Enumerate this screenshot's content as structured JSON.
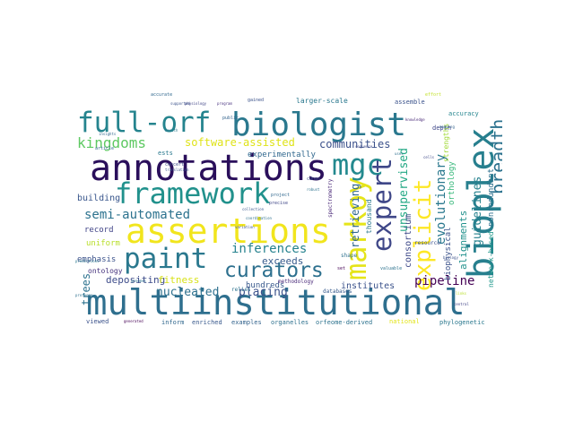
{
  "words": [
    {
      "text": "multiinstitutional",
      "color": "#2e6f8e"
    },
    {
      "text": "annotations",
      "color": "#2a0f5b"
    },
    {
      "text": "assertions",
      "color": "#f1e51d"
    },
    {
      "text": "biologist",
      "color": "#2a788e"
    },
    {
      "text": "bioplex",
      "color": "#277f8e"
    },
    {
      "text": "framework",
      "color": "#21918c"
    },
    {
      "text": "paint",
      "color": "#2a788e"
    },
    {
      "text": "full-orf",
      "color": "#25848e"
    },
    {
      "text": "markoy",
      "color": "#e5e419"
    },
    {
      "text": "mgc",
      "color": "#23898e"
    },
    {
      "text": "expert",
      "color": "#3f4788"
    },
    {
      "text": "curators",
      "color": "#2d708e"
    },
    {
      "text": "explicit",
      "color": "#fde725"
    },
    {
      "text": "breadth",
      "color": "#2c728e"
    },
    {
      "text": "kingdoms",
      "color": "#5ec962"
    },
    {
      "text": "software-assisted",
      "color": "#dfe318"
    },
    {
      "text": "communities",
      "color": "#3b518b"
    },
    {
      "text": "semi-automated",
      "color": "#2c728e"
    },
    {
      "text": "inferences",
      "color": "#26828e"
    },
    {
      "text": "unsupervised",
      "color": "#22a884"
    },
    {
      "text": "evolutionary",
      "color": "#2a788e"
    },
    {
      "text": "guidelines",
      "color": "#26828e"
    },
    {
      "text": "nucleated",
      "color": "#2d708e"
    },
    {
      "text": "placing",
      "color": "#3b528b"
    },
    {
      "text": "retrieving",
      "color": "#31688e"
    },
    {
      "text": "pipeline",
      "color": "#440154"
    },
    {
      "text": "alignments",
      "color": "#21918c"
    },
    {
      "text": "experimentally",
      "color": "#31688e"
    },
    {
      "text": "exceeds",
      "color": "#375b8d"
    },
    {
      "text": "building",
      "color": "#39568c"
    },
    {
      "text": "trees",
      "color": "#2c728e"
    },
    {
      "text": "depositing",
      "color": "#3e4c8a"
    },
    {
      "text": "fitness",
      "color": "#d8e219"
    },
    {
      "text": "institutes",
      "color": "#3b528b"
    },
    {
      "text": "consortium",
      "color": "#3e4989"
    },
    {
      "text": "orthology",
      "color": "#35b779"
    },
    {
      "text": "nonredundant",
      "color": "#2d708e"
    },
    {
      "text": "network-based",
      "color": "#1f988b"
    },
    {
      "text": "emphasis",
      "color": "#3b528b"
    },
    {
      "text": "biophysical",
      "color": "#3b528b"
    },
    {
      "text": "thousand",
      "color": "#2a788e"
    },
    {
      "text": "hundreds",
      "color": "#38598c"
    },
    {
      "text": "record",
      "color": "#414487"
    },
    {
      "text": "uniform",
      "color": "#b8de29"
    },
    {
      "text": "ontology",
      "color": "#46337e"
    },
    {
      "text": "viewed",
      "color": "#3b528b"
    },
    {
      "text": "inform",
      "color": "#31688e"
    },
    {
      "text": "enriched",
      "color": "#38598c"
    },
    {
      "text": "examples",
      "color": "#33638d"
    },
    {
      "text": "organelles",
      "color": "#2d708e"
    },
    {
      "text": "orfeome-derived",
      "color": "#2c728e"
    },
    {
      "text": "phylogenetic",
      "color": "#2a788e"
    },
    {
      "text": "national",
      "color": "#e2e418"
    },
    {
      "text": "larger-scale",
      "color": "#2a788e"
    },
    {
      "text": "assemble",
      "color": "#3b528b"
    },
    {
      "text": "accuracy",
      "color": "#25858e"
    },
    {
      "text": "depth",
      "color": "#3f4788"
    },
    {
      "text": "strengths",
      "color": "#a2da37"
    },
    {
      "text": "resource",
      "color": "#3b528b"
    },
    {
      "text": "ests",
      "color": "#2a788e"
    },
    {
      "text": "accurate",
      "color": "#31688e"
    },
    {
      "text": "gained",
      "color": "#3b528b"
    },
    {
      "text": "methodology",
      "color": "#482878"
    },
    {
      "text": "relies",
      "color": "#2c728e"
    },
    {
      "text": "databases",
      "color": "#375b8d"
    },
    {
      "text": "spectrometry",
      "color": "#482677"
    },
    {
      "text": "shape",
      "color": "#2d708e"
    },
    {
      "text": "concert",
      "color": "#3e4a89"
    },
    {
      "text": "public",
      "color": "#33638d"
    },
    {
      "text": "article",
      "color": "#31688e"
    },
    {
      "text": "program",
      "color": "#46307e"
    },
    {
      "text": "effort",
      "color": "#c0df25"
    },
    {
      "text": "project",
      "color": "#31688e"
    },
    {
      "text": "cdnas",
      "color": "#3b528b"
    },
    {
      "text": "precise",
      "color": "#3f4788"
    },
    {
      "text": "robust",
      "color": "#2c728e"
    },
    {
      "text": "valuable",
      "color": "#2c728e"
    },
    {
      "text": "uses",
      "color": "#2d708e"
    },
    {
      "text": "translation",
      "color": "#3b528b"
    },
    {
      "text": "physiology",
      "color": "#414487"
    },
    {
      "text": "knowledge",
      "color": "#482878"
    },
    {
      "text": "collection",
      "color": "#39568c"
    },
    {
      "text": "coordination",
      "color": "#2d708e"
    },
    {
      "text": "variation",
      "color": "#3b528b"
    },
    {
      "text": "set",
      "color": "#440154"
    },
    {
      "text": "sequence",
      "color": "#3e4989"
    },
    {
      "text": "health",
      "color": "#2a788e"
    },
    {
      "text": "genomes",
      "color": "#2c728e"
    },
    {
      "text": "mapping",
      "color": "#33638d"
    },
    {
      "text": "biology",
      "color": "#3b528b"
    },
    {
      "text": "central",
      "color": "#414487"
    },
    {
      "text": "links",
      "color": "#b8de29"
    },
    {
      "text": "insights",
      "color": "#31688e"
    },
    {
      "text": "supported",
      "color": "#3b528b"
    },
    {
      "text": "proteome",
      "color": "#2d708e"
    },
    {
      "text": "generated",
      "color": "#440154"
    },
    {
      "text": "predictions",
      "color": "#2a788e"
    },
    {
      "text": "cells",
      "color": "#3e4989"
    }
  ]
}
